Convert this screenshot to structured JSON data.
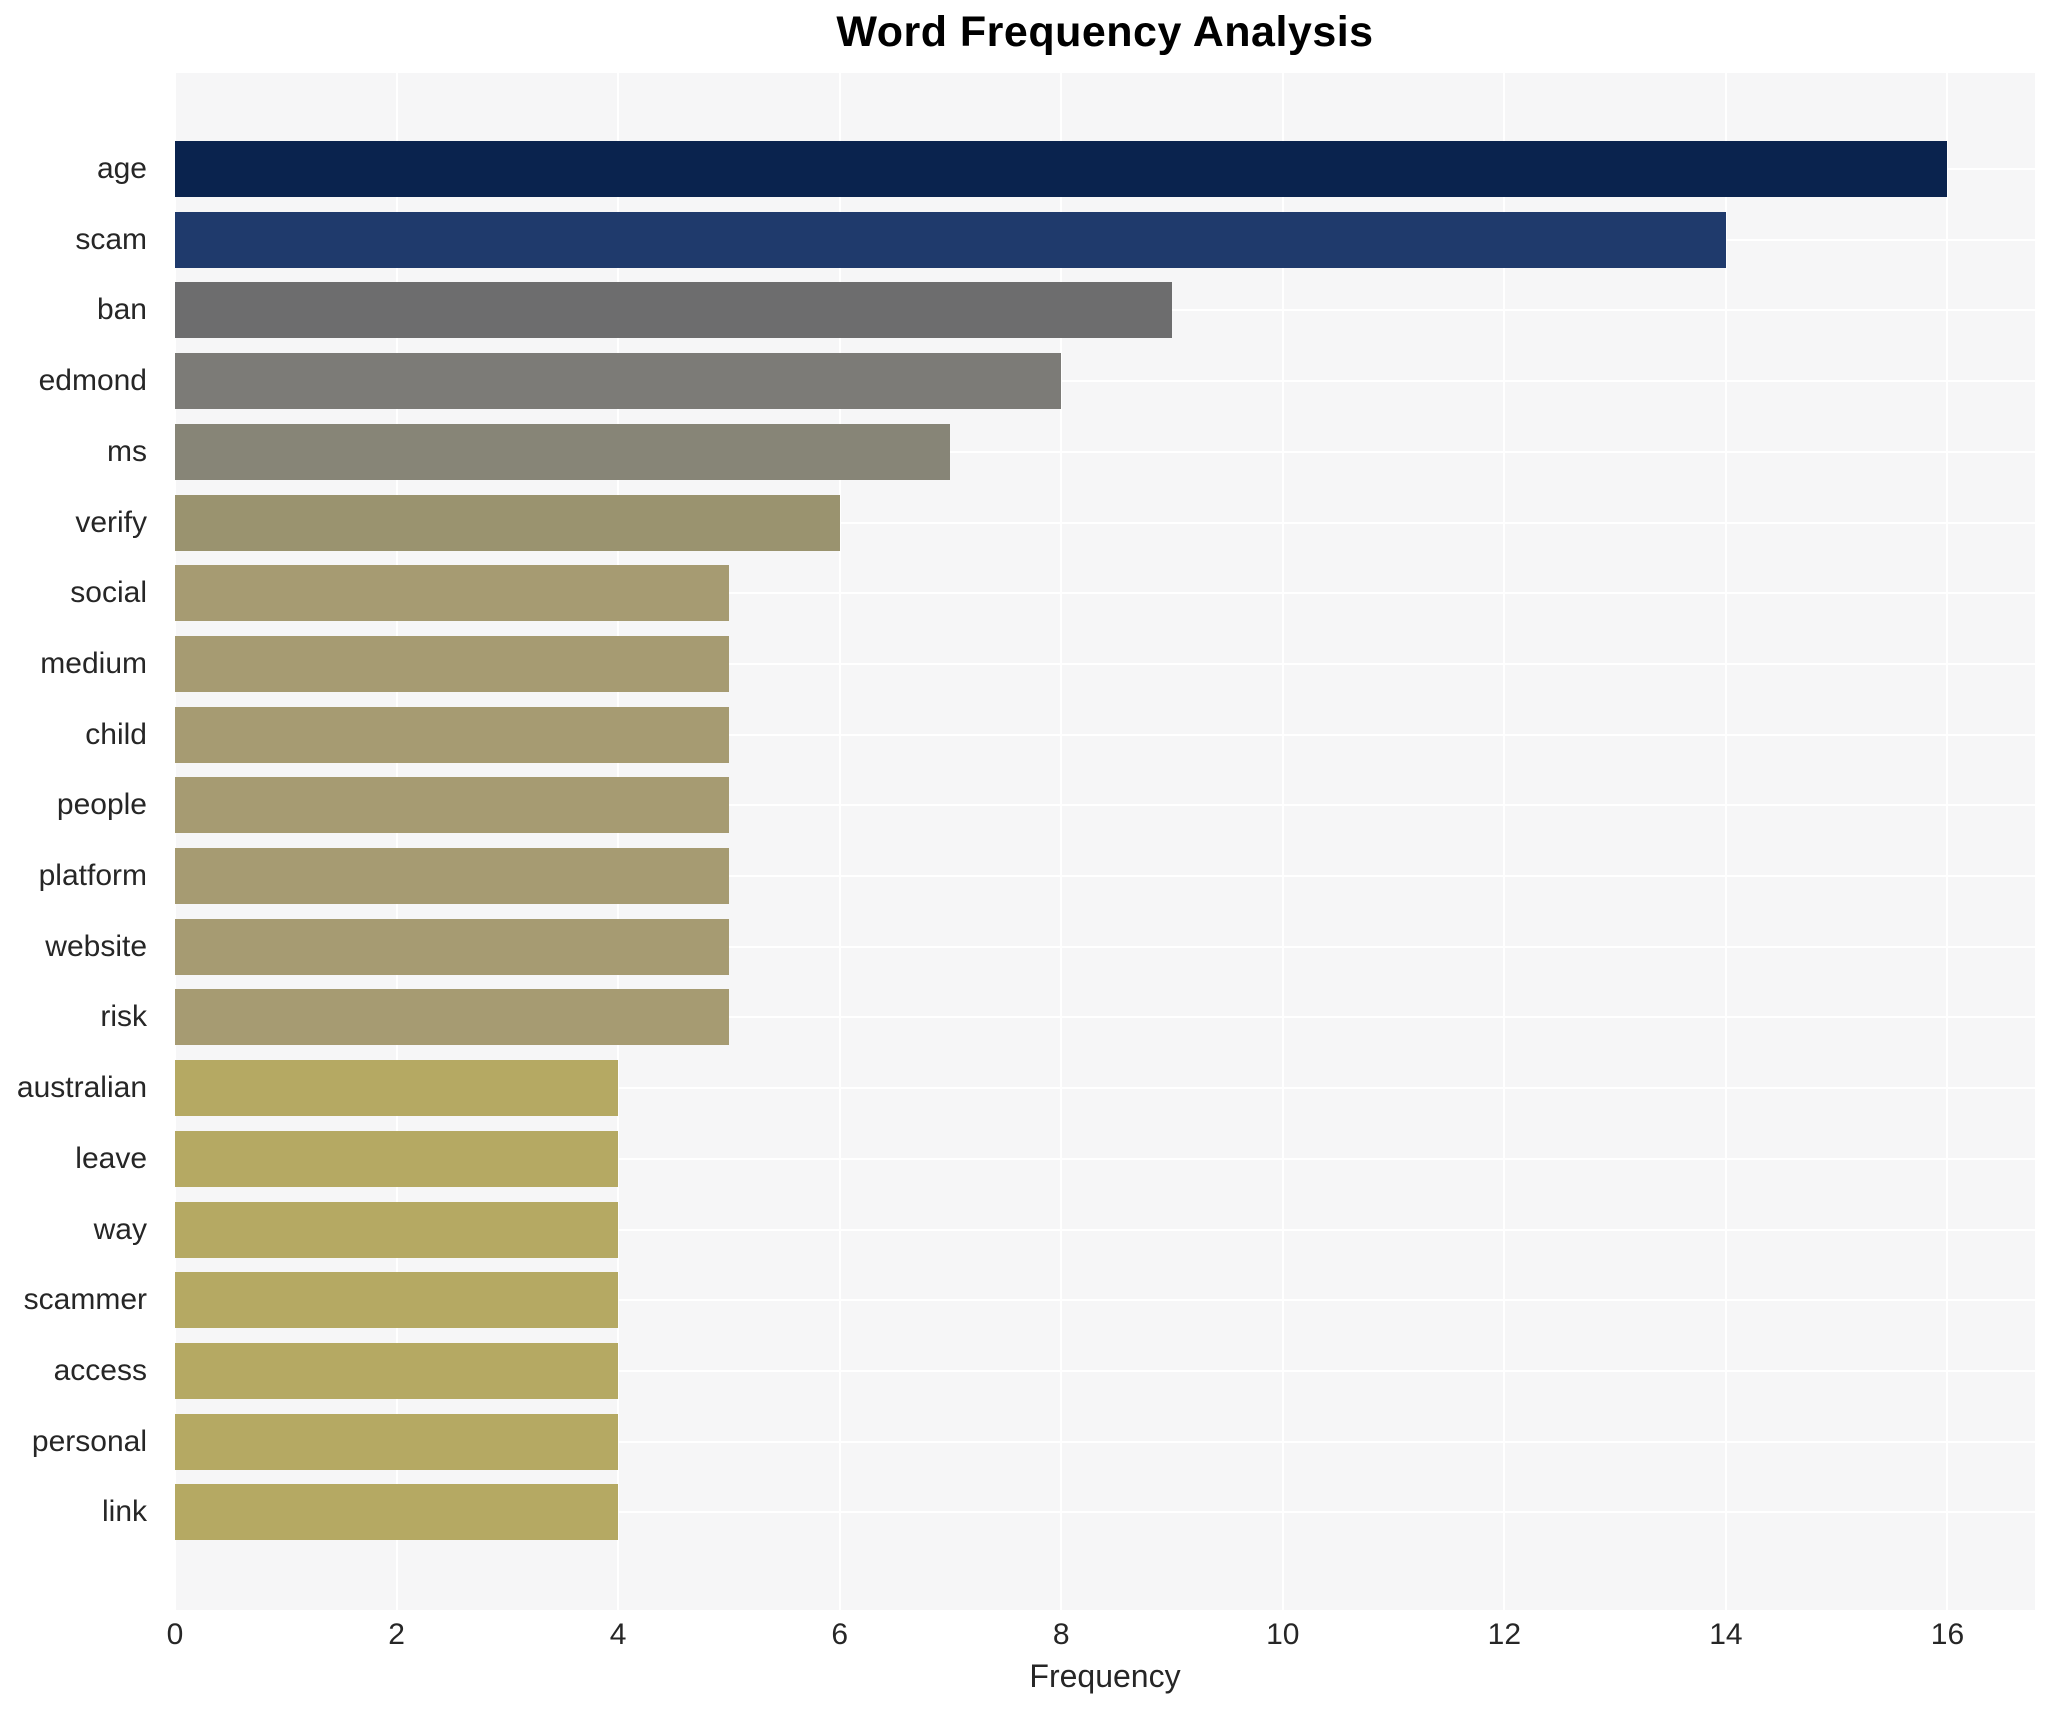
{
  "chart_data": {
    "type": "bar",
    "orientation": "horizontal",
    "title": "Word Frequency Analysis",
    "xlabel": "Frequency",
    "ylabel": "",
    "categories": [
      "age",
      "scam",
      "ban",
      "edmond",
      "ms",
      "verify",
      "social",
      "medium",
      "child",
      "people",
      "platform",
      "website",
      "risk",
      "australian",
      "leave",
      "way",
      "scammer",
      "access",
      "personal",
      "link"
    ],
    "values": [
      16,
      14,
      9,
      8,
      7,
      6,
      5,
      5,
      5,
      5,
      5,
      5,
      5,
      4,
      4,
      4,
      4,
      4,
      4,
      4
    ],
    "bar_colors": [
      "#0a234e",
      "#1f3a6c",
      "#6d6d6e",
      "#7c7b77",
      "#878577",
      "#9a936f",
      "#a69b72",
      "#a69b72",
      "#a69b72",
      "#a69b72",
      "#a69b72",
      "#a69b72",
      "#a69b72",
      "#b5a963",
      "#b5a963",
      "#b5a963",
      "#b5a963",
      "#b5a963",
      "#b5a963",
      "#b5a963"
    ],
    "xticks": [
      0,
      2,
      4,
      6,
      8,
      10,
      12,
      14,
      16
    ],
    "xlim": [
      0,
      16.79
    ],
    "grid": "white major gridlines on x ticks and category centers, drawn below bars",
    "legend": "none",
    "colors": {
      "page_background": "#ffffff",
      "plot_background": "#f6f6f7",
      "gridline": "#ffffff",
      "title_text": "#000000",
      "axis_text": "#262626"
    }
  }
}
